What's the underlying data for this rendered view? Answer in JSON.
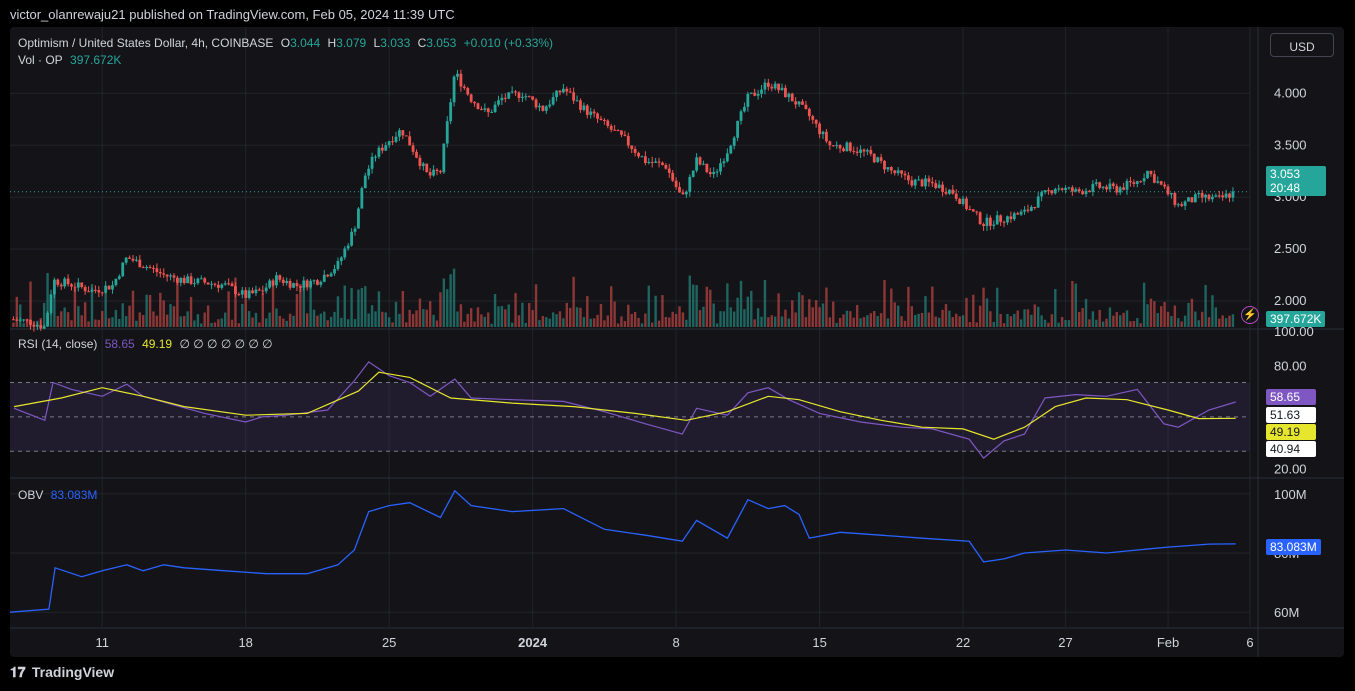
{
  "header": {
    "publisher": "victor_olanrewaju21 published on TradingView.com, Feb 05, 2024 11:39 UTC"
  },
  "legend": {
    "symbol": "Optimism / United States Dollar, 4h, COINBASE",
    "o_label": "O",
    "o": "3.044",
    "h_label": "H",
    "h": "3.079",
    "l_label": "L",
    "l": "3.033",
    "c_label": "C",
    "c": "3.053",
    "change": "+0.010 (+0.33%)",
    "vol_label": "Vol · OP",
    "vol_value": "397.672K"
  },
  "currency_button": "USD",
  "rsi_legend": {
    "label": "RSI (14, close)",
    "rsi": "58.65",
    "ma": "49.19",
    "empties": "∅ ∅ ∅ ∅ ∅ ∅ ∅"
  },
  "obv_legend": {
    "label": "OBV",
    "value": "83.083M"
  },
  "badges": {
    "price": "3.053",
    "countdown": "20:48",
    "volume": "397.672K",
    "rsi": "58.65",
    "rsi_upper_mid": "51.63",
    "rsi_ma": "49.19",
    "rsi_lower": "40.94",
    "obv": "83.083M"
  },
  "footer": {
    "brand": "TradingView"
  },
  "colors": {
    "up": "#26a69a",
    "down": "#ef5350",
    "rsi": "#7e57c2",
    "rsi_ma": "#e6e62e",
    "obv": "#2962ff",
    "grid": "#2a2e39"
  },
  "chart_data": [
    {
      "type": "candlestick",
      "pane": "price",
      "price_scale": {
        "ticks": [
          "4.000",
          "3.500",
          "3.000",
          "2.500",
          "2.000"
        ],
        "range": [
          1.75,
          4.35
        ]
      },
      "x_ticks": [
        "11",
        "18",
        "25",
        "2024",
        "8",
        "15",
        "22",
        "27",
        "Feb",
        "6"
      ],
      "x_tick_days": [
        10,
        17,
        24,
        31,
        38,
        45,
        52,
        57,
        62,
        66
      ],
      "x_range_days": [
        5.5,
        66
      ],
      "close_path": [
        [
          5.7,
          1.82
        ],
        [
          6.5,
          1.8
        ],
        [
          7.2,
          1.75
        ],
        [
          7.6,
          2.2
        ],
        [
          8.5,
          2.16
        ],
        [
          9.5,
          2.1
        ],
        [
          10.5,
          2.15
        ],
        [
          11.2,
          2.42
        ],
        [
          12,
          2.35
        ],
        [
          13,
          2.25
        ],
        [
          14,
          2.2
        ],
        [
          15,
          2.18
        ],
        [
          16,
          2.15
        ],
        [
          17,
          2.05
        ],
        [
          17.8,
          2.1
        ],
        [
          18.5,
          2.22
        ],
        [
          19.5,
          2.15
        ],
        [
          20.5,
          2.2
        ],
        [
          21.5,
          2.35
        ],
        [
          22.3,
          2.7
        ],
        [
          22.8,
          3.2
        ],
        [
          23.3,
          3.4
        ],
        [
          24,
          3.55
        ],
        [
          24.6,
          3.65
        ],
        [
          25.2,
          3.45
        ],
        [
          25.9,
          3.2
        ],
        [
          26.5,
          3.25
        ],
        [
          27.2,
          4.2
        ],
        [
          28,
          3.95
        ],
        [
          28.8,
          3.8
        ],
        [
          29.5,
          3.95
        ],
        [
          30.5,
          4.0
        ],
        [
          31.5,
          3.85
        ],
        [
          32.5,
          4.05
        ],
        [
          33.5,
          3.85
        ],
        [
          34.5,
          3.7
        ],
        [
          35.5,
          3.55
        ],
        [
          36.5,
          3.35
        ],
        [
          37.5,
          3.3
        ],
        [
          38.3,
          2.98
        ],
        [
          39,
          3.35
        ],
        [
          39.8,
          3.2
        ],
        [
          40.5,
          3.45
        ],
        [
          41.5,
          3.95
        ],
        [
          42.5,
          4.1
        ],
        [
          43.3,
          4.0
        ],
        [
          43.8,
          3.92
        ],
        [
          44.5,
          3.78
        ],
        [
          45.5,
          3.5
        ],
        [
          46.5,
          3.48
        ],
        [
          47.5,
          3.4
        ],
        [
          48.5,
          3.25
        ],
        [
          49.5,
          3.15
        ],
        [
          50.5,
          3.13
        ],
        [
          51.5,
          3.05
        ],
        [
          52.3,
          2.88
        ],
        [
          53,
          2.75
        ],
        [
          54,
          2.8
        ],
        [
          55,
          2.85
        ],
        [
          55.8,
          3.0
        ],
        [
          56.5,
          3.1
        ],
        [
          57.5,
          3.05
        ],
        [
          58.5,
          3.1
        ],
        [
          59.5,
          3.08
        ],
        [
          60.5,
          3.15
        ],
        [
          61,
          3.25
        ],
        [
          61.8,
          3.08
        ],
        [
          62.5,
          2.92
        ],
        [
          63.5,
          3.0
        ],
        [
          64.5,
          2.98
        ],
        [
          65.3,
          3.053
        ]
      ]
    },
    {
      "type": "bar",
      "pane": "volume",
      "series": [
        {
          "name": "Vol · OP",
          "last_value": "397.672K"
        }
      ]
    },
    {
      "type": "line",
      "pane": "rsi",
      "y_ticks": [
        "100.00",
        "80.00",
        "20.00"
      ],
      "y_range": [
        15,
        100
      ],
      "bands": [
        70,
        50,
        30
      ],
      "series": [
        {
          "name": "RSI (14, close)",
          "points": [
            [
              5.7,
              55
            ],
            [
              7.2,
              48
            ],
            [
              7.6,
              70
            ],
            [
              8.5,
              66
            ],
            [
              10,
              62
            ],
            [
              11.2,
              69
            ],
            [
              12,
              62
            ],
            [
              13.5,
              57
            ],
            [
              15,
              52
            ],
            [
              17,
              47
            ],
            [
              17.8,
              50
            ],
            [
              19,
              51
            ],
            [
              21,
              54
            ],
            [
              22.3,
              71
            ],
            [
              23,
              82
            ],
            [
              24,
              74
            ],
            [
              25,
              70
            ],
            [
              26,
              62
            ],
            [
              27.2,
              72
            ],
            [
              28,
              61
            ],
            [
              30,
              60
            ],
            [
              32.5,
              59
            ],
            [
              34.5,
              53
            ],
            [
              36.5,
              46
            ],
            [
              38.3,
              40
            ],
            [
              39,
              55
            ],
            [
              40.5,
              51
            ],
            [
              41.5,
              64
            ],
            [
              42.5,
              67
            ],
            [
              43.5,
              60
            ],
            [
              45,
              52
            ],
            [
              47,
              47
            ],
            [
              49,
              44
            ],
            [
              50.5,
              43
            ],
            [
              52.3,
              37
            ],
            [
              53,
              26
            ],
            [
              54,
              36
            ],
            [
              55,
              40
            ],
            [
              56,
              61
            ],
            [
              57.5,
              63
            ],
            [
              59,
              62
            ],
            [
              60.5,
              66
            ],
            [
              61.8,
              46
            ],
            [
              62.5,
              44
            ],
            [
              64,
              54
            ],
            [
              65.3,
              58.65
            ]
          ]
        },
        {
          "name": "RSI MA",
          "points": [
            [
              5.7,
              56
            ],
            [
              8,
              61
            ],
            [
              10,
              67
            ],
            [
              12,
              62
            ],
            [
              14,
              56
            ],
            [
              17,
              51
            ],
            [
              20,
              52
            ],
            [
              22.5,
              65
            ],
            [
              23.5,
              76
            ],
            [
              25,
              73
            ],
            [
              27,
              61
            ],
            [
              30,
              58
            ],
            [
              33,
              56
            ],
            [
              36,
              52
            ],
            [
              38.5,
              48
            ],
            [
              40.5,
              53
            ],
            [
              42.5,
              62
            ],
            [
              44,
              60
            ],
            [
              46,
              53
            ],
            [
              48,
              48
            ],
            [
              50,
              44
            ],
            [
              52,
              43
            ],
            [
              53.5,
              37
            ],
            [
              55,
              44
            ],
            [
              56.5,
              56
            ],
            [
              58,
              61
            ],
            [
              60,
              60
            ],
            [
              62,
              54
            ],
            [
              63.5,
              49
            ],
            [
              65.3,
              49.19
            ]
          ]
        }
      ]
    },
    {
      "type": "line",
      "pane": "obv",
      "y_ticks": [
        "100M",
        "80M",
        "60M"
      ],
      "y_range": [
        55,
        105
      ],
      "series": [
        {
          "name": "OBV",
          "points": [
            [
              5.5,
              60
            ],
            [
              7.4,
              61
            ],
            [
              7.7,
              75
            ],
            [
              9,
              72
            ],
            [
              10,
              74
            ],
            [
              11.2,
              76
            ],
            [
              12,
              74
            ],
            [
              13,
              76
            ],
            [
              14,
              75
            ],
            [
              16,
              74
            ],
            [
              18,
              73
            ],
            [
              20,
              73
            ],
            [
              21.5,
              76
            ],
            [
              22.3,
              81
            ],
            [
              23,
              94
            ],
            [
              24,
              96
            ],
            [
              25,
              97
            ],
            [
              26.5,
              92
            ],
            [
              27.2,
              101
            ],
            [
              28,
              96
            ],
            [
              30,
              94
            ],
            [
              32.5,
              95
            ],
            [
              34.5,
              88
            ],
            [
              36.5,
              86
            ],
            [
              38.3,
              84
            ],
            [
              39,
              91
            ],
            [
              40.5,
              85
            ],
            [
              41.5,
              98
            ],
            [
              42.5,
              95
            ],
            [
              43.3,
              96
            ],
            [
              44,
              93
            ],
            [
              44.5,
              85
            ],
            [
              46,
              87
            ],
            [
              48,
              86
            ],
            [
              50,
              85
            ],
            [
              52.3,
              84
            ],
            [
              53,
              77
            ],
            [
              54,
              78
            ],
            [
              55,
              80
            ],
            [
              57,
              81
            ],
            [
              59,
              80
            ],
            [
              60.5,
              81
            ],
            [
              62,
              82
            ],
            [
              64,
              83
            ],
            [
              65.3,
              83.083
            ]
          ]
        }
      ]
    }
  ]
}
